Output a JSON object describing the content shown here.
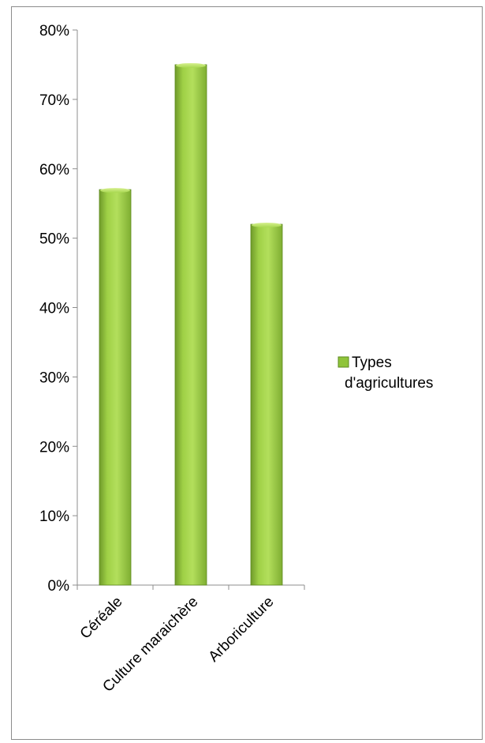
{
  "chart_data": {
    "type": "bar",
    "categories": [
      "Céréale",
      "Culture maraichère",
      "Arboriculture"
    ],
    "series": [
      {
        "name": "Types d'agricultures",
        "values": [
          57,
          75,
          52
        ]
      }
    ],
    "ylim": [
      0,
      80
    ],
    "y_tick_step": 10,
    "y_ticks": [
      "0%",
      "10%",
      "20%",
      "30%",
      "40%",
      "50%",
      "60%",
      "70%",
      "80%"
    ],
    "title": "",
    "xlabel": "",
    "ylabel": "",
    "grid": false,
    "legend_position": "right",
    "legend_lines": [
      "Types",
      "d'agricultures"
    ],
    "colors": {
      "bar_light": "#b5e05a",
      "bar_mid": "#8fc43a",
      "bar_dark": "#5e8a20",
      "axis": "#8c8c8c"
    }
  }
}
